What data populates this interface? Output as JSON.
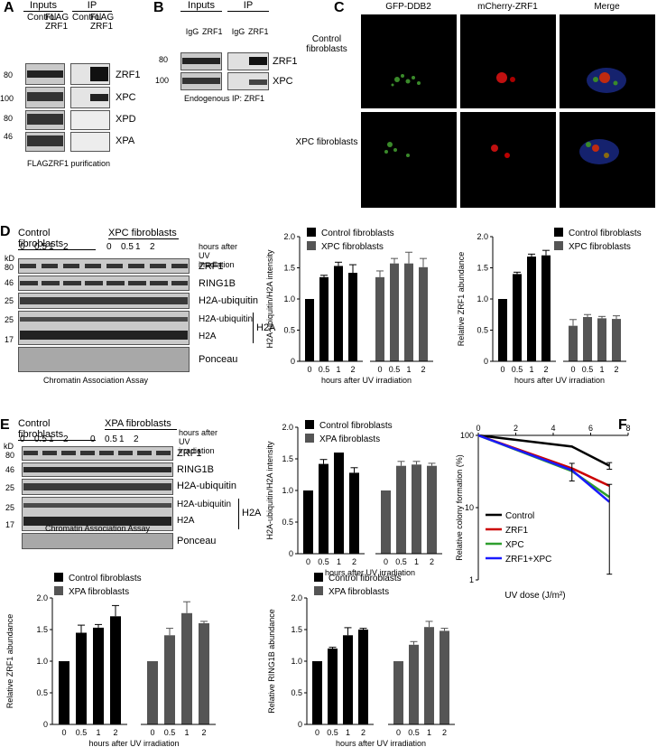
{
  "panels": {
    "A": "A",
    "B": "B",
    "C": "C",
    "D": "D",
    "E": "E",
    "F": "F"
  },
  "panelA": {
    "inputs": "Inputs",
    "ip": "IP",
    "lanes": [
      "Control",
      "FLAG ZRF1",
      "Control",
      "FLAG ZRF1"
    ],
    "kd": [
      "80",
      "100",
      "80",
      "46"
    ],
    "proteins": [
      "ZRF1",
      "XPC",
      "XPD",
      "XPA"
    ],
    "caption": "FLAGZRF1 purification"
  },
  "panelB": {
    "inputs": "Inputs",
    "ip": "IP",
    "lanes": [
      "IgG",
      "ZRF1",
      "IgG",
      "ZRF1"
    ],
    "kd": [
      "80",
      "100"
    ],
    "proteins": [
      "ZRF1",
      "XPC"
    ],
    "caption": "Endogenous IP: ZRF1"
  },
  "panelC": {
    "columns": [
      "GFP-DDB2",
      "mCherry-ZRF1",
      "Merge"
    ],
    "rows": [
      "Control fibroblasts",
      "XPC fibroblasts"
    ]
  },
  "panelD": {
    "groups": [
      "Control fibroblasts",
      "XPC fibroblasts"
    ],
    "lanes": [
      "0",
      "0.5",
      "1",
      "2",
      "0",
      "0.5",
      "1",
      "2"
    ],
    "time_label": "hours after UV irradiation",
    "kd": [
      "kD",
      "80",
      "46",
      "25",
      "25",
      "17"
    ],
    "bands": [
      "ZRF1",
      "RING1B",
      "H2A-ubiquitin",
      "H2A-ubiquitin",
      "H2A",
      "Ponceau"
    ],
    "bracket": "H2A",
    "caption": "Chromatin Association Assay"
  },
  "panelE": {
    "groups": [
      "Control fibroblasts",
      "XPA fibroblasts"
    ],
    "lanes": [
      "0",
      "0.5",
      "1",
      "2",
      "0",
      "0.5",
      "1",
      "2"
    ],
    "time_label": "hours after UV irradiation",
    "kd": [
      "kD",
      "80",
      "46",
      "25",
      "25",
      "17"
    ],
    "bands": [
      "ZRF1",
      "RING1B",
      "H2A-ubiquitin",
      "H2A-ubiquitin",
      "H2A",
      "Ponceau"
    ],
    "bracket": "H2A",
    "caption": "Chromatin Association Assay"
  },
  "colors": {
    "control": "#000000",
    "mutant": "#555555",
    "zrf1": "#cc0000",
    "xpc": "#2e9e2e",
    "zrf1xpc": "#1a1aff"
  },
  "chart_data": [
    {
      "id": "D1",
      "type": "bar",
      "ylabel": "H2A-ubiquitin/H2A intensity",
      "xlabel": "hours after UV irradiation",
      "ylim": [
        0,
        2.0
      ],
      "yticks": [
        "0",
        "0.5",
        "1.0",
        "1.5",
        "2.0"
      ],
      "categories": [
        "0",
        "0.5",
        "1",
        "2"
      ],
      "series": [
        {
          "name": "Control fibroblasts",
          "values": [
            1.0,
            1.35,
            1.53,
            1.42
          ],
          "err": [
            0,
            0.03,
            0.06,
            0.13
          ]
        },
        {
          "name": "XPC fibroblasts",
          "values": [
            1.35,
            1.57,
            1.57,
            1.51
          ],
          "err": [
            0.1,
            0.08,
            0.18,
            0.14
          ]
        }
      ]
    },
    {
      "id": "D2",
      "type": "bar",
      "ylabel": "Relative ZRF1 abundance",
      "xlabel": "hours after UV irradiation",
      "ylim": [
        0,
        2.0
      ],
      "yticks": [
        "0",
        "0.5",
        "1.0",
        "1.5",
        "2.0"
      ],
      "categories": [
        "0",
        "0.5",
        "1",
        "2"
      ],
      "series": [
        {
          "name": "Control fibroblasts",
          "values": [
            1.0,
            1.4,
            1.68,
            1.7
          ],
          "err": [
            0,
            0.03,
            0.04,
            0.08
          ]
        },
        {
          "name": "XPC fibroblasts",
          "values": [
            0.57,
            0.71,
            0.69,
            0.68
          ],
          "err": [
            0.1,
            0.04,
            0.03,
            0.05
          ]
        }
      ]
    },
    {
      "id": "E1",
      "type": "bar",
      "ylabel": "H2A-ubiquitin/H2A intensity",
      "xlabel": "hours after UV irradiation",
      "ylim": [
        0,
        2.0
      ],
      "yticks": [
        "0",
        "0.5",
        "1.0",
        "1.5",
        "2.0"
      ],
      "categories": [
        "0",
        "0.5",
        "1",
        "2"
      ],
      "series": [
        {
          "name": "Control fibroblasts",
          "values": [
            1.0,
            1.42,
            1.6,
            1.28
          ],
          "err": [
            0,
            0.07,
            0,
            0.08
          ]
        },
        {
          "name": "XPA fibroblasts",
          "values": [
            1.0,
            1.39,
            1.41,
            1.39
          ],
          "err": [
            0,
            0.07,
            0.05,
            0.04
          ]
        }
      ]
    },
    {
      "id": "E2",
      "type": "bar",
      "ylabel": "Relative ZRF1 abundance",
      "xlabel": "hours after UV irradiation",
      "ylim": [
        0,
        2.0
      ],
      "yticks": [
        "0",
        "0.5",
        "1.0",
        "1.5",
        "2.0"
      ],
      "categories": [
        "0",
        "0.5",
        "1",
        "2"
      ],
      "series": [
        {
          "name": "Control fibroblasts",
          "values": [
            1.0,
            1.45,
            1.53,
            1.71
          ],
          "err": [
            0,
            0.12,
            0.05,
            0.17
          ]
        },
        {
          "name": "XPA fibroblasts",
          "values": [
            1.0,
            1.41,
            1.76,
            1.6
          ],
          "err": [
            0,
            0.11,
            0.18,
            0.03
          ]
        }
      ]
    },
    {
      "id": "E3",
      "type": "bar",
      "ylabel": "Relative RING1B abundance",
      "xlabel": "hours after UV irradiation",
      "ylim": [
        0,
        2.0
      ],
      "yticks": [
        "0",
        "0.5",
        "1.0",
        "1.5",
        "2.0"
      ],
      "categories": [
        "0",
        "0.5",
        "1",
        "2"
      ],
      "series": [
        {
          "name": "Control fibroblasts",
          "values": [
            1.0,
            1.2,
            1.41,
            1.5
          ],
          "err": [
            0,
            0.02,
            0.12,
            0.02
          ]
        },
        {
          "name": "XPA fibroblasts",
          "values": [
            1.0,
            1.26,
            1.54,
            1.48
          ],
          "err": [
            0,
            0.05,
            0.09,
            0.04
          ]
        }
      ]
    },
    {
      "id": "F",
      "type": "line",
      "ylabel": "Relative colony formation (%)",
      "xlabel": "UV dose (J/m²)",
      "log_y": true,
      "xlim": [
        0,
        8
      ],
      "ylim": [
        1,
        100
      ],
      "xticks": [
        "0",
        "2",
        "4",
        "6",
        "8"
      ],
      "yticks": [
        "1",
        "10",
        "100"
      ],
      "series": [
        {
          "name": "Control",
          "x": [
            0,
            5,
            7
          ],
          "y": [
            100,
            70,
            38
          ],
          "err": [
            0,
            0,
            4
          ]
        },
        {
          "name": "ZRF1",
          "x": [
            0,
            5,
            7
          ],
          "y": [
            100,
            35,
            20
          ],
          "err": [
            0,
            0,
            0
          ]
        },
        {
          "name": "XPC",
          "x": [
            0,
            5,
            7
          ],
          "y": [
            100,
            32,
            14
          ],
          "err": [
            0,
            0,
            0
          ]
        },
        {
          "name": "ZRF1+XPC",
          "x": [
            0,
            5,
            7
          ],
          "y": [
            100,
            33,
            12
          ],
          "err": [
            0,
            8,
            9
          ]
        }
      ]
    }
  ]
}
